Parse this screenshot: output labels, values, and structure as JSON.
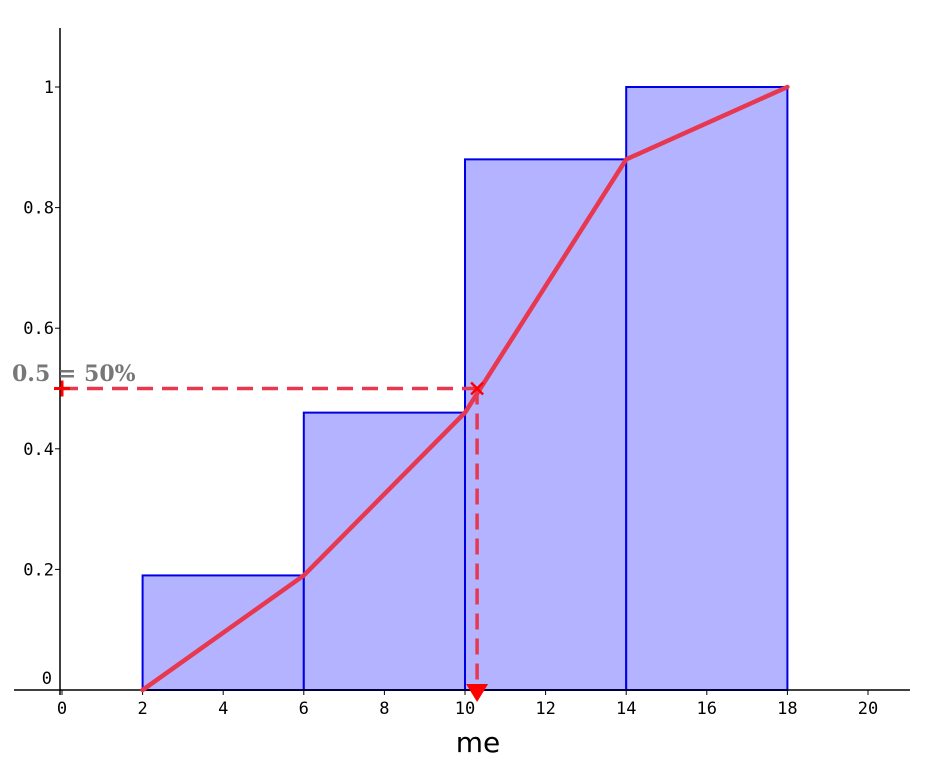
{
  "chart_data": {
    "type": "bar",
    "xlabel": "me",
    "ylabel": "",
    "xlim": [
      0,
      21
    ],
    "ylim": [
      0,
      1.1
    ],
    "x_ticks": [
      0,
      2,
      4,
      6,
      8,
      10,
      12,
      14,
      16,
      18,
      20
    ],
    "x_tick_labels": [
      "0",
      "2",
      "4",
      "6",
      "8",
      "10",
      "12",
      "14",
      "16",
      "18",
      "20"
    ],
    "y_ticks": [
      0,
      0.2,
      0.4,
      0.6,
      0.8,
      1
    ],
    "y_tick_labels": [
      "0",
      "0.2",
      "0.4",
      "0.6",
      "0.8",
      "1"
    ],
    "bars": [
      {
        "from": 2,
        "to": 6,
        "value": 0.19
      },
      {
        "from": 6,
        "to": 10,
        "value": 0.46
      },
      {
        "from": 10,
        "to": 14,
        "value": 0.88
      },
      {
        "from": 14,
        "to": 18,
        "value": 1.0
      }
    ],
    "cumulative_line": {
      "points": [
        [
          2,
          0
        ],
        [
          6,
          0.19
        ],
        [
          10,
          0.46
        ],
        [
          14,
          0.88
        ],
        [
          18,
          1.0
        ]
      ]
    },
    "median_marker": {
      "x": 10.3,
      "y": 0.5
    },
    "annotation": "0.5 = 50%",
    "grid": false,
    "colors": {
      "bar_fill": "#b3b3ff",
      "bar_stroke": "#0000e6",
      "line": "#e8384f",
      "annotation_text": "#777777",
      "marker": "#ff0000"
    }
  }
}
